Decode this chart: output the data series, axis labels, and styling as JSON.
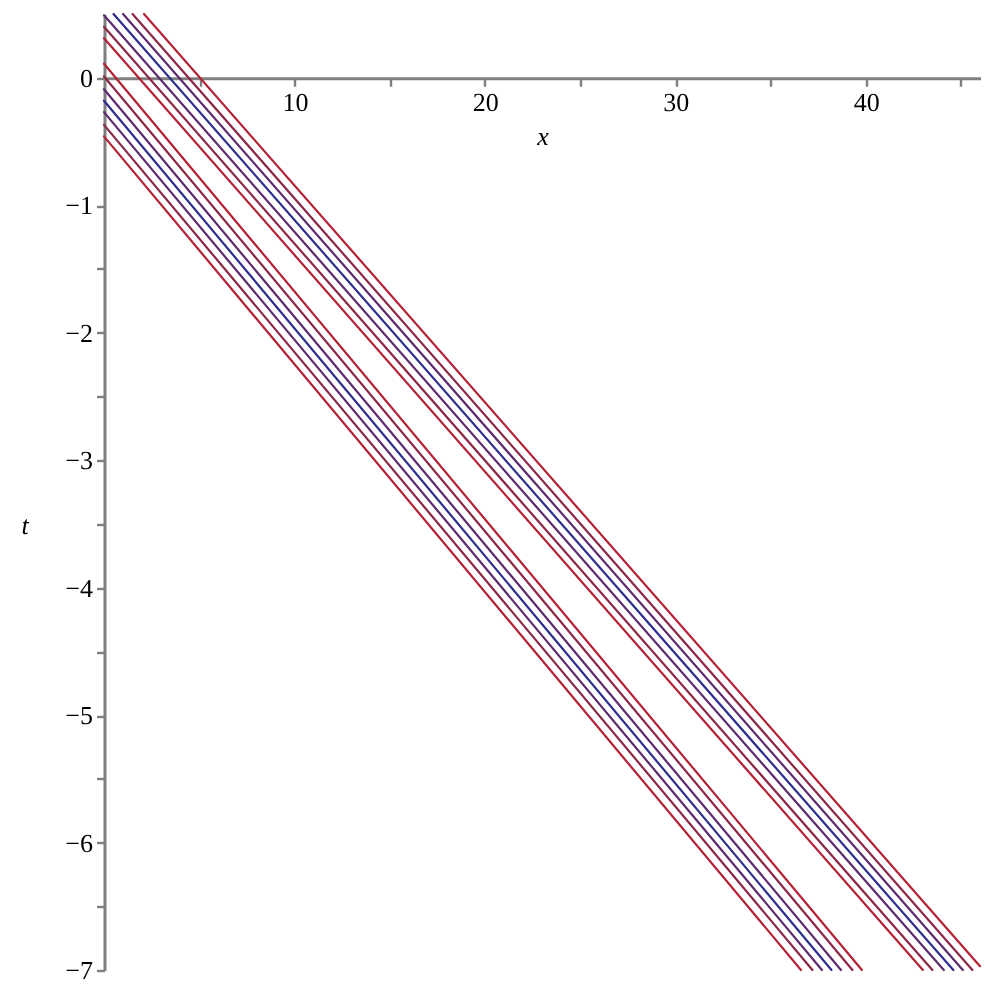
{
  "chart_data": {
    "type": "line",
    "xlabel": "x",
    "ylabel": "t",
    "xlim": [
      0,
      46
    ],
    "ylim": [
      -7,
      0.5
    ],
    "xticks": [
      {
        "value": 5,
        "label": null
      },
      10,
      {
        "value": 15,
        "label": null
      },
      20,
      {
        "value": 25,
        "label": null
      },
      30,
      {
        "value": 35,
        "label": null
      },
      40,
      {
        "value": 45,
        "label": null
      }
    ],
    "yticks": [
      0,
      -1,
      {
        "value": -1.5,
        "label": null
      },
      -2,
      {
        "value": -2.5,
        "label": null
      },
      -3,
      {
        "value": -3.5,
        "label": null
      },
      -4,
      {
        "value": -4.5,
        "label": null
      },
      -5,
      {
        "value": -5.5,
        "label": null
      },
      -6,
      {
        "value": -6.5,
        "label": null
      },
      -7
    ],
    "series": [
      {
        "color": "#b22234",
        "x": [
          0,
          43.0
        ],
        "values": [
          0.31,
          -7
        ]
      },
      {
        "color": "#8c2846",
        "x": [
          0,
          43.5
        ],
        "values": [
          0.4,
          -7
        ]
      },
      {
        "color": "#5e2a6e",
        "x": [
          0,
          44.1
        ],
        "values": [
          0.49,
          -7
        ]
      },
      {
        "color": "#2e2e8e",
        "x": [
          0.5,
          44.6
        ],
        "values": [
          0.5,
          -7
        ]
      },
      {
        "color": "#5e2a6e",
        "x": [
          1.0,
          45.1
        ],
        "values": [
          0.5,
          -7
        ]
      },
      {
        "color": "#8c2846",
        "x": [
          1.5,
          45.6
        ],
        "values": [
          0.5,
          -7
        ]
      },
      {
        "color": "#b22234",
        "x": [
          2.1,
          46
        ],
        "values": [
          0.5,
          -6.97
        ]
      },
      {
        "color": "#b22234",
        "x": [
          0,
          36.6
        ],
        "values": [
          -0.46,
          -7
        ]
      },
      {
        "color": "#8c2846",
        "x": [
          0,
          37.2
        ],
        "values": [
          -0.37,
          -7
        ]
      },
      {
        "color": "#5e2a6e",
        "x": [
          0,
          37.7
        ],
        "values": [
          -0.27,
          -7
        ]
      },
      {
        "color": "#2e2e8e",
        "x": [
          0,
          38.2
        ],
        "values": [
          -0.18,
          -7
        ]
      },
      {
        "color": "#5e2a6e",
        "x": [
          0,
          38.7
        ],
        "values": [
          -0.09,
          -7
        ]
      },
      {
        "color": "#8c2846",
        "x": [
          0,
          39.3
        ],
        "values": [
          0.01,
          -7
        ]
      },
      {
        "color": "#b22234",
        "x": [
          0,
          39.8
        ],
        "values": [
          0.11,
          -7
        ]
      }
    ]
  }
}
